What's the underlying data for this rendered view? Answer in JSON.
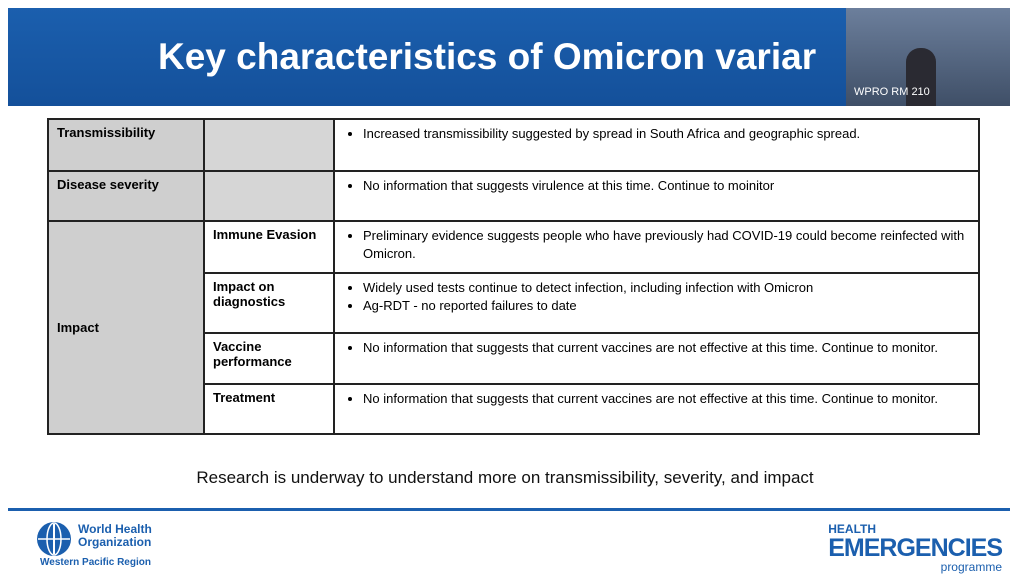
{
  "header": {
    "title": "Key characteristics of Omicron variar",
    "video_label": "WPRO RM 210"
  },
  "table": {
    "rows": [
      {
        "label": "Transmissibility",
        "points": [
          "Increased transmissibility suggested by spread in South Africa and geographic spread."
        ]
      },
      {
        "label": "Disease severity",
        "points": [
          "No information that suggests virulence at this time. Continue to moinitor"
        ]
      },
      {
        "label": "Impact",
        "subrows": [
          {
            "label": "Immune Evasion",
            "points": [
              "Preliminary evidence suggests people who have previously had COVID-19 could become reinfected with Omicron."
            ]
          },
          {
            "label": "Impact on diagnostics",
            "points": [
              "Widely used tests continue to detect infection, including infection with Omicron",
              "Ag-RDT - no reported failures to date"
            ]
          },
          {
            "label": "Vaccine performance",
            "points": [
              "No information that suggests that current vaccines are not effective at this time. Continue to monitor."
            ]
          },
          {
            "label": "Treatment",
            "points": [
              "No information that suggests that current vaccines are not effective at this time. Continue to monitor."
            ]
          }
        ]
      }
    ]
  },
  "footnote": "Research is underway to understand more on transmissibility, severity, and impact",
  "footer": {
    "org_line1": "World Health",
    "org_line2": "Organization",
    "region": "Western Pacific Region",
    "programme_line1": "HEALTH",
    "programme_line2": "EMERGENCIES",
    "programme_line3": "programme"
  }
}
